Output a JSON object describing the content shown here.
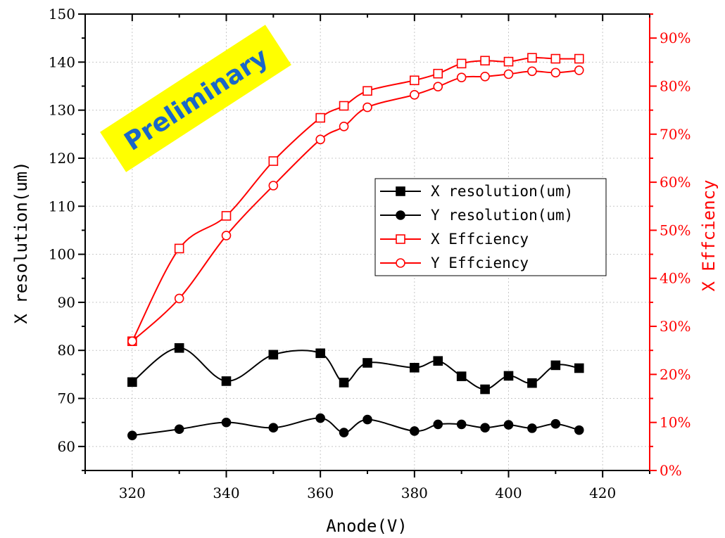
{
  "chart_data": {
    "type": "line",
    "xlabel": "Anode(V)",
    "ylabel": "X resolution(um)",
    "y2label": "X Effciency",
    "xlim": [
      310,
      430
    ],
    "ylim": [
      55,
      150
    ],
    "y2lim": [
      0,
      95
    ],
    "x_ticks": [
      320,
      340,
      360,
      380,
      400,
      420
    ],
    "y_ticks": [
      60,
      70,
      80,
      90,
      100,
      110,
      120,
      130,
      140,
      150
    ],
    "y2_ticks": [
      "0%",
      "10%",
      "20%",
      "30%",
      "40%",
      "50%",
      "60%",
      "70%",
      "80%",
      "90%"
    ],
    "grid": true,
    "legend_position": "center-right",
    "annotation": "Preliminary",
    "series": [
      {
        "name": "X resolution(um)",
        "axis": "left",
        "marker": "square-filled",
        "color": "#000000",
        "x": [
          320,
          330,
          340,
          350,
          360,
          365,
          370,
          380,
          385,
          390,
          395,
          400,
          405,
          410,
          415
        ],
        "y": [
          73.4,
          80.5,
          73.6,
          79.1,
          79.4,
          73.3,
          77.4,
          76.4,
          77.8,
          74.6,
          71.9,
          74.7,
          73.2,
          76.9,
          76.3
        ]
      },
      {
        "name": "Y resolution(um)",
        "axis": "left",
        "marker": "circle-filled",
        "color": "#000000",
        "x": [
          320,
          330,
          340,
          350,
          360,
          365,
          370,
          380,
          385,
          390,
          395,
          400,
          405,
          410,
          415
        ],
        "y": [
          62.3,
          63.6,
          65.0,
          63.9,
          65.9,
          62.9,
          65.6,
          63.2,
          64.6,
          64.6,
          63.9,
          64.5,
          63.8,
          64.7,
          63.4
        ]
      },
      {
        "name": "X Effciency",
        "axis": "right",
        "marker": "square-open",
        "color": "#ff0000",
        "x": [
          320,
          330,
          340,
          350,
          360,
          365,
          370,
          380,
          385,
          390,
          395,
          400,
          405,
          410,
          415
        ],
        "y": [
          26.9,
          46.2,
          53.0,
          64.4,
          73.4,
          75.9,
          79.0,
          81.2,
          82.6,
          84.7,
          85.3,
          85.1,
          85.9,
          85.7,
          85.7
        ]
      },
      {
        "name": "Y Effciency",
        "axis": "right",
        "marker": "circle-open",
        "color": "#ff0000",
        "x": [
          320,
          330,
          340,
          350,
          360,
          365,
          370,
          380,
          385,
          390,
          395,
          400,
          405,
          410,
          415
        ],
        "y": [
          26.9,
          35.8,
          48.9,
          59.3,
          68.9,
          71.6,
          75.6,
          78.2,
          79.9,
          81.8,
          82.0,
          82.5,
          83.1,
          82.8,
          83.3
        ]
      }
    ]
  }
}
